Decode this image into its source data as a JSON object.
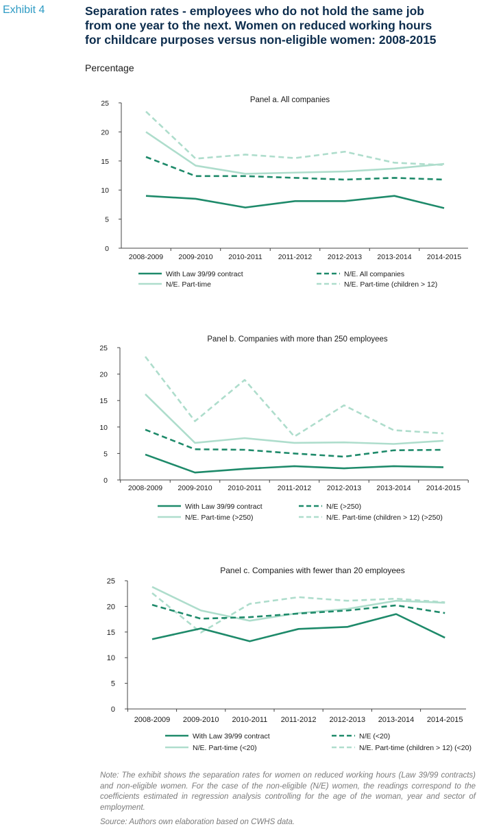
{
  "exhibit_label": "Exhibit 4",
  "title": "Separation rates - employees who do not hold the same job\nfrom one year to the next. Women on reduced working hours\nfor childcare purposes versus non-eligible women: 2008-2015",
  "unit_label": "Percentage",
  "note": "Note: The exhibit shows the separation rates for women on reduced working hours (Law 39/99 contracts) and non-eligible women. For the case of the non-eligible (N/E) women, the readings correspond to the coefficients estimated in regression analysis controlling for the age of the woman, year and sector of employment.",
  "source": "Source: Authors own elaboration based on CWHS data.",
  "colors": {
    "dark": "#1e8a6a",
    "light": "#aeddcc"
  },
  "chart_data": [
    {
      "type": "line",
      "title": "Panel a. All companies",
      "categories": [
        "2008-2009",
        "2009-2010",
        "2010-2011",
        "2011-2012",
        "2012-2013",
        "2013-2014",
        "2014-2015"
      ],
      "ylim": [
        0,
        25
      ],
      "yticks": [
        0,
        5,
        10,
        15,
        20,
        25
      ],
      "grid": false,
      "legend": "bottom",
      "series": [
        {
          "name": "With Law 39/99 contract",
          "style": "solid-dark",
          "values": [
            9.0,
            8.5,
            7.0,
            8.1,
            8.1,
            9.0,
            6.9
          ]
        },
        {
          "name": "N/E. All companies",
          "style": "dashed-dark",
          "values": [
            15.7,
            12.4,
            12.4,
            12.1,
            11.8,
            12.1,
            11.8
          ]
        },
        {
          "name": "N/E. Part-time",
          "style": "solid-light",
          "values": [
            20.0,
            14.2,
            12.8,
            13.0,
            13.2,
            13.7,
            14.5
          ]
        },
        {
          "name": "N/E. Part-time (children > 12)",
          "style": "dashed-light",
          "values": [
            23.5,
            15.4,
            16.1,
            15.5,
            16.6,
            14.7,
            14.3
          ]
        }
      ]
    },
    {
      "type": "line",
      "title": "Panel b. Companies with more than 250 employees",
      "categories": [
        "2008-2009",
        "2009-2010",
        "2010-2011",
        "2011-2012",
        "2012-2013",
        "2013-2014",
        "2014-2015"
      ],
      "ylim": [
        0,
        25
      ],
      "yticks": [
        0,
        5,
        10,
        15,
        20,
        25
      ],
      "grid": false,
      "legend": "bottom",
      "series": [
        {
          "name": "With Law 39/99 contract",
          "style": "solid-dark",
          "values": [
            4.8,
            1.4,
            2.1,
            2.6,
            2.2,
            2.6,
            2.4
          ]
        },
        {
          "name": "N/E (>250)",
          "style": "dashed-dark",
          "values": [
            9.5,
            5.8,
            5.7,
            5.0,
            4.4,
            5.6,
            5.7
          ]
        },
        {
          "name": "N/E. Part-time (>250)",
          "style": "solid-light",
          "values": [
            16.2,
            7.0,
            7.9,
            7.0,
            7.1,
            6.8,
            7.4
          ]
        },
        {
          "name": "N/E. Part-time (children > 12) (>250)",
          "style": "dashed-light",
          "values": [
            23.3,
            11.1,
            18.9,
            8.2,
            14.1,
            9.4,
            8.8
          ]
        }
      ]
    },
    {
      "type": "line",
      "title": "Panel c. Companies with fewer than 20 employees",
      "categories": [
        "2008-2009",
        "2009-2010",
        "2010-2011",
        "2011-2012",
        "2012-2013",
        "2013-2014",
        "2014-2015"
      ],
      "ylim": [
        0,
        25
      ],
      "yticks": [
        0,
        5,
        10,
        15,
        20,
        25
      ],
      "grid": false,
      "legend": "bottom",
      "series": [
        {
          "name": "With Law 39/99 contract",
          "style": "solid-dark",
          "values": [
            13.6,
            15.7,
            13.2,
            15.6,
            16.0,
            18.5,
            13.9
          ]
        },
        {
          "name": "N/E (<20)",
          "style": "dashed-dark",
          "values": [
            20.3,
            17.6,
            17.9,
            18.6,
            19.2,
            20.2,
            18.7
          ]
        },
        {
          "name": "N/E. Part-time (<20)",
          "style": "solid-light",
          "values": [
            23.8,
            19.2,
            17.2,
            18.7,
            19.5,
            21.1,
            20.7
          ]
        },
        {
          "name": "N/E. Part-time (children > 12) (<20)",
          "style": "dashed-light",
          "values": [
            22.6,
            14.9,
            20.5,
            21.8,
            21.1,
            21.5,
            20.8
          ]
        }
      ]
    }
  ]
}
